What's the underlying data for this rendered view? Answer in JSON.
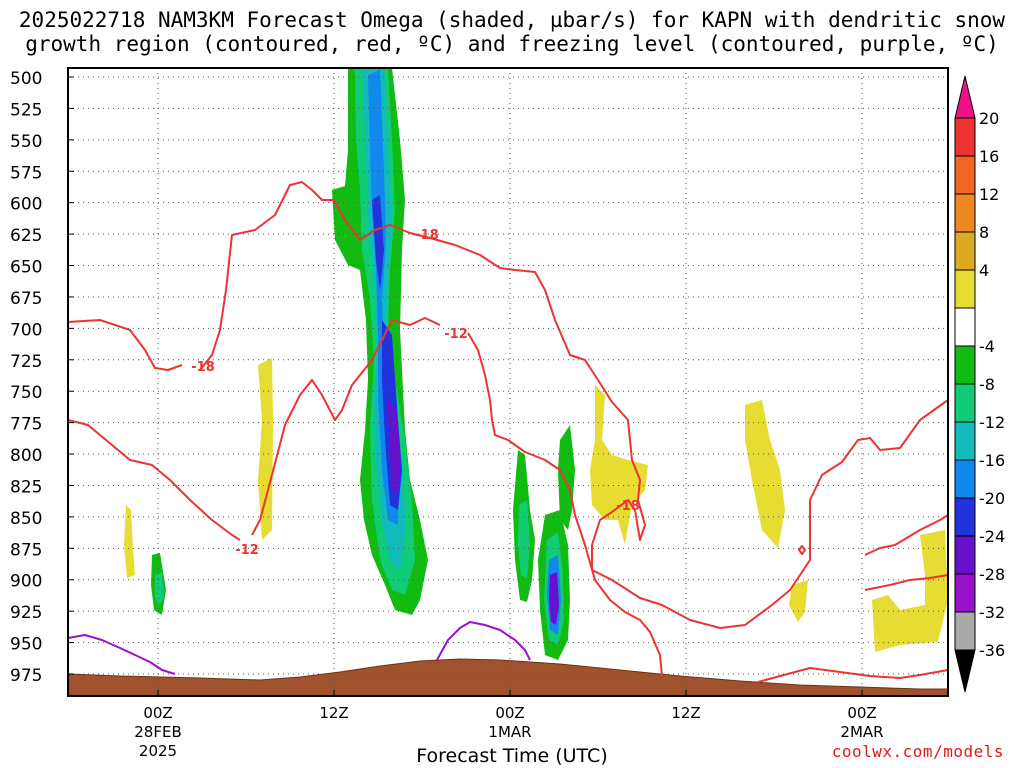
{
  "title_line1": "2025022718 NAM3KM Forecast Omega (shaded, µbar/s) for KAPN with dendritic snow",
  "title_line2": "growth region (contoured, red, ºC) and freezing level (contoured, purple, ºC)",
  "credit": "coolwx.com/models",
  "chart_data": {
    "type": "time-height cross section",
    "title": "2025022718 NAM3KM Forecast Omega (shaded, µbar/s) for KAPN with dendritic snow growth region (contoured, red, ºC) and freezing level (contoured, purple, ºC)",
    "xlabel": "Forecast Time (UTC)",
    "ylabel": "",
    "x_ticks": [
      {
        "time": "2025-02-28T00Z",
        "lines": [
          "00Z",
          "28FEB",
          "2025"
        ]
      },
      {
        "time": "2025-02-28T12Z",
        "lines": [
          "12Z"
        ]
      },
      {
        "time": "2025-03-01T00Z",
        "lines": [
          "00Z",
          "1MAR"
        ]
      },
      {
        "time": "2025-03-01T12Z",
        "lines": [
          "12Z"
        ]
      },
      {
        "time": "2025-03-02T00Z",
        "lines": [
          "00Z",
          "2MAR"
        ]
      }
    ],
    "xlim": [
      "2025-02-27T18Z",
      "2025-03-02T06Z"
    ],
    "y_ticks": [
      500,
      525,
      550,
      575,
      600,
      625,
      650,
      675,
      700,
      725,
      750,
      775,
      800,
      825,
      850,
      875,
      900,
      925,
      950,
      975
    ],
    "ylim": [
      500,
      985
    ],
    "y_axis": "pressure (hPa), increasing downward",
    "grid": true,
    "colorbar": {
      "labels": [
        "20",
        "16",
        "12",
        "8",
        "4",
        "-4",
        "-8",
        "-12",
        "-16",
        "-20",
        "-24",
        "-28",
        "-32",
        "-36"
      ],
      "colors": [
        "#ee1188",
        "#ee3333",
        "#ee6622",
        "#ee8822",
        "#ddaa22",
        "#e6dc32",
        "#ffffff",
        "#11bb11",
        "#11cc77",
        "#11bbbb",
        "#1188ee",
        "#2233dd",
        "#6611cc",
        "#9911cc",
        "#aaaaaa",
        "#000000"
      ]
    },
    "dgz_labels": [
      "-18",
      "-12",
      "-18",
      "-12",
      "-18"
    ],
    "surface_color": "#a0522d",
    "dgz_color": "#ee3333",
    "freezing_color": "#9911cc"
  }
}
